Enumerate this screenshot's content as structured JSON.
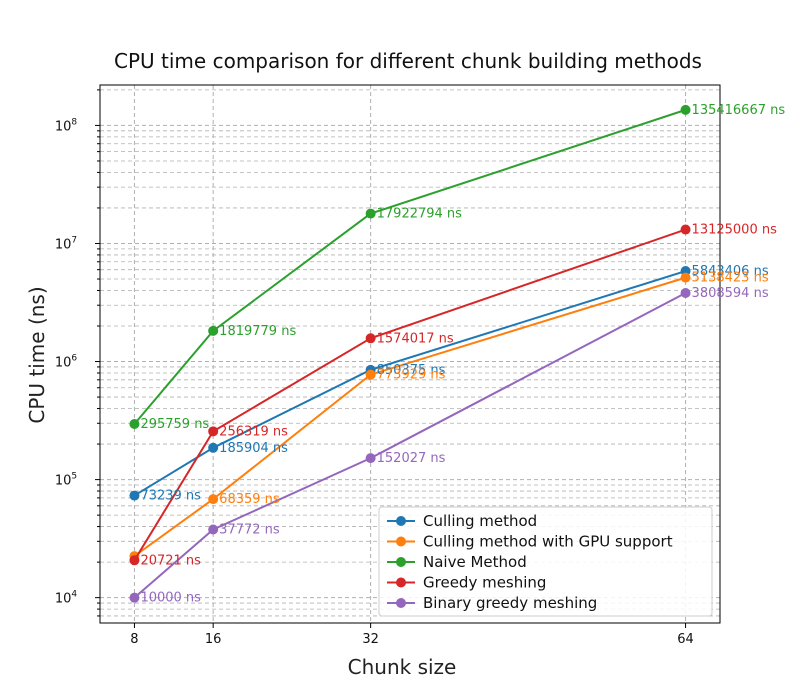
{
  "chart_data": {
    "type": "line",
    "title": "CPU time comparison for different chunk building methods",
    "xlabel": "Chunk size",
    "ylabel": "CPU time (ns)",
    "x": [
      8,
      16,
      32,
      64
    ],
    "xlim": [
      4.5,
      67.5
    ],
    "ylim": [
      6100,
      220000000
    ],
    "yscale": "log",
    "grid": true,
    "legend_position": "lower-right",
    "x_ticks": [
      8,
      16,
      32,
      64
    ],
    "y_ticks": [
      {
        "value": 10000,
        "base": "10",
        "exp": "4"
      },
      {
        "value": 100000,
        "base": "10",
        "exp": "5"
      },
      {
        "value": 1000000,
        "base": "10",
        "exp": "6"
      },
      {
        "value": 10000000,
        "base": "10",
        "exp": "7"
      },
      {
        "value": 100000000,
        "base": "10",
        "exp": "8"
      }
    ],
    "series": [
      {
        "name": "Culling method",
        "color": "#1f77b4",
        "values": [
          73239,
          185904,
          850375,
          5843406
        ],
        "labels": [
          "73239 ns",
          "185904 ns",
          "850375 ns",
          "5843406 ns"
        ]
      },
      {
        "name": "Culling method with GPU support",
        "color": "#ff7f0e",
        "values": [
          22500,
          68359,
          773929,
          5138423
        ],
        "labels": [
          "",
          "68359 ns",
          "773929 ns",
          "5138423 ns"
        ]
      },
      {
        "name": "Naive Method",
        "color": "#2ca02c",
        "values": [
          295759,
          1819779,
          17922794,
          135416667
        ],
        "labels": [
          "295759 ns",
          "1819779 ns",
          "17922794 ns",
          "135416667 ns"
        ]
      },
      {
        "name": "Greedy meshing",
        "color": "#d62728",
        "values": [
          20721,
          256319,
          1574017,
          13125000
        ],
        "labels": [
          "20721 ns",
          "256319 ns",
          "1574017 ns",
          "13125000 ns"
        ]
      },
      {
        "name": "Binary greedy meshing",
        "color": "#9467bd",
        "values": [
          10000,
          37772,
          152027,
          3808594
        ],
        "labels": [
          "10000 ns",
          "37772 ns",
          "152027 ns",
          "3808594 ns"
        ]
      }
    ]
  }
}
